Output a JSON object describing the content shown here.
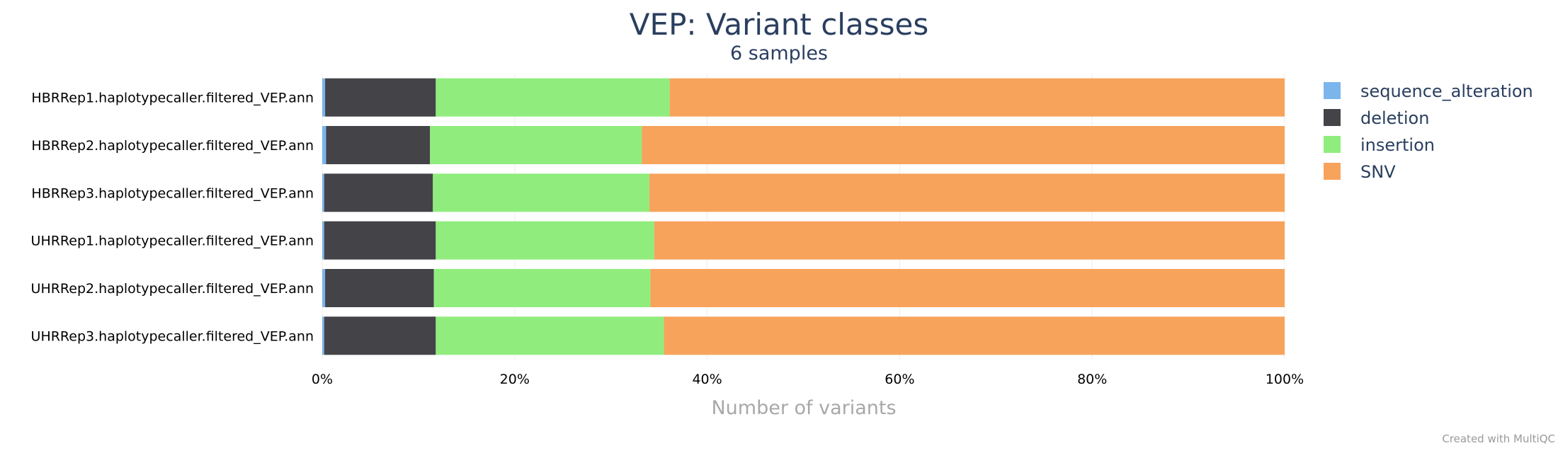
{
  "chart_data": {
    "type": "bar",
    "orientation": "horizontal",
    "stacked": true,
    "title": "VEP: Variant classes",
    "subtitle": "6 samples",
    "xlabel": "Number of variants",
    "ylabel": "",
    "xlim": [
      0,
      100
    ],
    "x_ticks": [
      "0%",
      "20%",
      "40%",
      "60%",
      "80%",
      "100%"
    ],
    "grid": true,
    "legend_position": "right",
    "categories": [
      "HBRRep1.haplotypecaller.filtered_VEP.ann",
      "HBRRep2.haplotypecaller.filtered_VEP.ann",
      "HBRRep3.haplotypecaller.filtered_VEP.ann",
      "UHRRep1.haplotypecaller.filtered_VEP.ann",
      "UHRRep2.haplotypecaller.filtered_VEP.ann",
      "UHRRep3.haplotypecaller.filtered_VEP.ann"
    ],
    "series": [
      {
        "name": "sequence_alteration",
        "color": "#7cb5ec",
        "values": [
          0.3,
          0.4,
          0.2,
          0.2,
          0.3,
          0.2
        ]
      },
      {
        "name": "deletion",
        "color": "#434348",
        "values": [
          11.5,
          10.8,
          11.3,
          11.6,
          11.3,
          11.6
        ]
      },
      {
        "name": "insertion",
        "color": "#90ed7d",
        "values": [
          24.3,
          22.0,
          22.5,
          22.7,
          22.5,
          23.7
        ]
      },
      {
        "name": "SNV",
        "color": "#f7a35c",
        "values": [
          63.9,
          66.8,
          66.0,
          65.5,
          65.9,
          64.5
        ]
      }
    ]
  },
  "footer": {
    "credit": "Created with MultiQC"
  }
}
